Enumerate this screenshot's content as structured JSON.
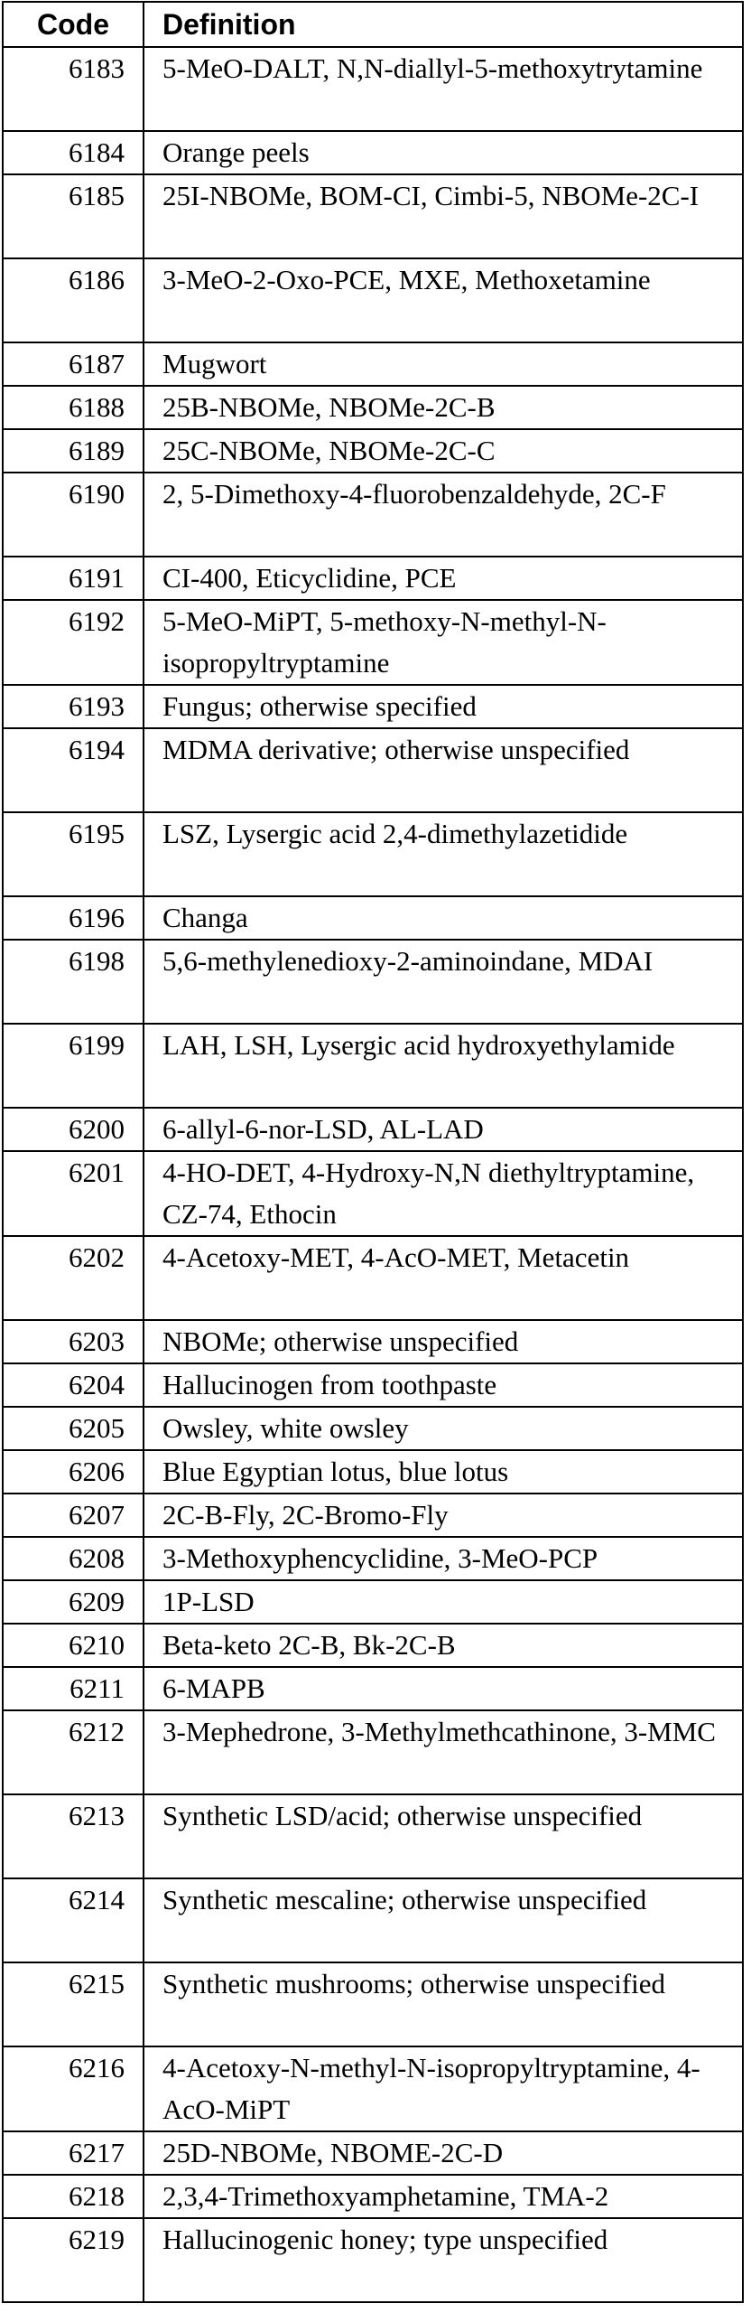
{
  "table": {
    "headers": {
      "code": "Code",
      "definition": "Definition"
    },
    "rows": [
      {
        "code": "6183",
        "definition": "5-MeO-DALT, N,N-diallyl-5-methoxytrytamine",
        "lines": 2
      },
      {
        "code": "6184",
        "definition": "Orange peels",
        "lines": 1
      },
      {
        "code": "6185",
        "definition": "25I-NBOMe, BOM-CI, Cimbi-5, NBOMe-2C-I",
        "lines": 2
      },
      {
        "code": "6186",
        "definition": "3-MeO-2-Oxo-PCE, MXE, Methoxetamine",
        "lines": 2
      },
      {
        "code": "6187",
        "definition": "Mugwort",
        "lines": 1
      },
      {
        "code": "6188",
        "definition": "25B-NBOMe, NBOMe-2C-B",
        "lines": 1
      },
      {
        "code": "6189",
        "definition": "25C-NBOMe, NBOMe-2C-C",
        "lines": 1
      },
      {
        "code": "6190",
        "definition": "2, 5-Dimethoxy-4-fluorobenzaldehyde, 2C-F",
        "lines": 2
      },
      {
        "code": "6191",
        "definition": "CI-400, Eticyclidine, PCE",
        "lines": 1
      },
      {
        "code": "6192",
        "definition": "5-MeO-MiPT, 5-methoxy-N-methyl-N-isopropyltryptamine",
        "lines": 2
      },
      {
        "code": "6193",
        "definition": "Fungus; otherwise specified",
        "lines": 1
      },
      {
        "code": "6194",
        "definition": "MDMA derivative; otherwise unspecified",
        "lines": 2
      },
      {
        "code": "6195",
        "definition": "LSZ, Lysergic acid 2,4-dimethylazetidide",
        "lines": 2
      },
      {
        "code": "6196",
        "definition": "Changa",
        "lines": 1
      },
      {
        "code": "6198",
        "definition": "5,6-methylenedioxy-2-aminoindane, MDAI",
        "lines": 2
      },
      {
        "code": "6199",
        "definition": "LAH, LSH, Lysergic acid hydroxyethylamide",
        "lines": 2
      },
      {
        "code": "6200",
        "definition": "6-allyl-6-nor-LSD, AL-LAD",
        "lines": 1
      },
      {
        "code": "6201",
        "definition": "4-HO-DET, 4-Hydroxy-N,N diethyltryptamine, CZ-74, Ethocin",
        "lines": 2
      },
      {
        "code": "6202",
        "definition": "4-Acetoxy-MET, 4-AcO-MET, Metacetin",
        "lines": 2
      },
      {
        "code": "6203",
        "definition": "NBOMe; otherwise unspecified",
        "lines": 1
      },
      {
        "code": "6204",
        "definition": "Hallucinogen from toothpaste",
        "lines": 1
      },
      {
        "code": "6205",
        "definition": "Owsley, white owsley",
        "lines": 1
      },
      {
        "code": "6206",
        "definition": "Blue Egyptian lotus, blue lotus",
        "lines": 1
      },
      {
        "code": "6207",
        "definition": "2C-B-Fly, 2C-Bromo-Fly",
        "lines": 1
      },
      {
        "code": "6208",
        "definition": "3-Methoxyphencyclidine, 3-MeO-PCP",
        "lines": 1
      },
      {
        "code": "6209",
        "definition": "1P-LSD",
        "lines": 1
      },
      {
        "code": "6210",
        "definition": "Beta-keto 2C-B, Bk-2C-B",
        "lines": 1
      },
      {
        "code": "6211",
        "definition": "6-MAPB",
        "lines": 1
      },
      {
        "code": "6212",
        "definition": "3-Mephedrone, 3-Methylmethcathinone, 3-MMC",
        "lines": 2
      },
      {
        "code": "6213",
        "definition": "Synthetic LSD/acid; otherwise unspecified",
        "lines": 2
      },
      {
        "code": "6214",
        "definition": "Synthetic mescaline; otherwise unspecified",
        "lines": 2
      },
      {
        "code": "6215",
        "definition": "Synthetic mushrooms; otherwise unspecified",
        "lines": 2
      },
      {
        "code": "6216",
        "definition": "4-Acetoxy-N-methyl-N-isopropyltryptamine, 4-AcO-MiPT",
        "lines": 2
      },
      {
        "code": "6217",
        "definition": "25D-NBOMe, NBOME-2C-D",
        "lines": 1
      },
      {
        "code": "6218",
        "definition": "2,3,4-Trimethoxyamphetamine, TMA-2",
        "lines": 1
      },
      {
        "code": "6219",
        "definition": "Hallucinogenic honey; type unspecified",
        "lines": 2
      }
    ]
  }
}
